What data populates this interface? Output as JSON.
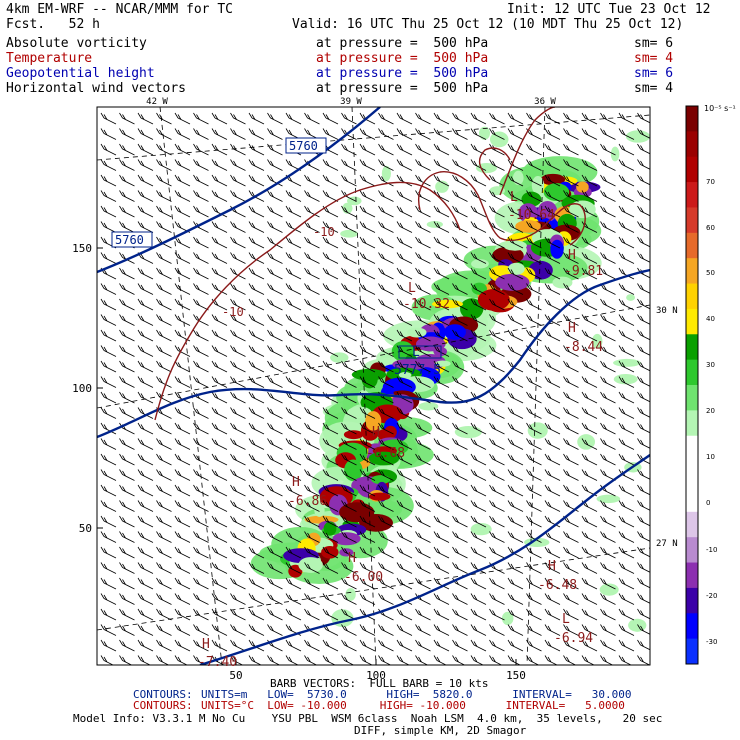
{
  "header": {
    "model": "4km EM-WRF -- NCAR/MMM for TC",
    "init": "Init: 12 UTC Tue 23 Oct 12",
    "fcst": "Fcst.   52 h",
    "valid": "Valid: 16 UTC Thu 25 Oct 12 (10 MDT Thu 25 Oct 12)"
  },
  "fields": [
    {
      "name": "Absolute vorticity",
      "level": "at pressure =  500 hPa",
      "sm": "sm= 6",
      "color": "#000000"
    },
    {
      "name": "Temperature",
      "level": "at pressure =  500 hPa",
      "sm": "sm= 4",
      "color": "#b00000"
    },
    {
      "name": "Geopotential height",
      "level": "at pressure =  500 hPa",
      "sm": "sm= 6",
      "color": "#0000b0"
    },
    {
      "name": "Horizontal wind vectors",
      "level": "at pressure =  500 hPa",
      "sm": "sm= 4",
      "color": "#000000"
    }
  ],
  "map": {
    "lon_labels": [
      "42 W",
      "39 W",
      "36 W"
    ],
    "lat_labels": [
      "30 N",
      "27 N"
    ],
    "grid_y_ticks": [
      "150",
      "100",
      "50"
    ],
    "grid_x_ticks": [
      "50",
      "100",
      "150"
    ],
    "height_contour_labels": [
      "5760",
      "5760"
    ],
    "temp_contour_labels": [
      "-10",
      "-10"
    ],
    "extrema": [
      {
        "type": "L",
        "value": "-10.64",
        "color": "#8b1a1a"
      },
      {
        "type": "H",
        "value": "-9.81",
        "color": "#8b1a1a"
      },
      {
        "type": "L",
        "value": "-10.32",
        "color": "#8b1a1a"
      },
      {
        "type": "H",
        "value": "-8.44",
        "color": "#8b1a1a"
      },
      {
        "type": "L",
        "value": "5777.5",
        "color": "#00008b"
      },
      {
        "type": "H",
        "value": "-6.68",
        "color": "#8b1a1a"
      },
      {
        "type": "H",
        "value": "-6.86",
        "color": "#8b1a1a"
      },
      {
        "type": "H",
        "value": "-6.00",
        "color": "#8b1a1a"
      },
      {
        "type": "H",
        "value": "-6.48",
        "color": "#8b1a1a"
      },
      {
        "type": "L",
        "value": "-6.94",
        "color": "#8b1a1a"
      },
      {
        "type": "H",
        "value": "-7.40",
        "color": "#8b1a1a"
      }
    ]
  },
  "colorbar": {
    "unit": "10⁻⁵ s⁻¹",
    "labels": [
      "70",
      "60",
      "50",
      "40",
      "30",
      "20",
      "10",
      "0",
      "-10",
      "-20",
      "-30"
    ],
    "colors": [
      "#7a0000",
      "#9a0000",
      "#b00000",
      "#cc1a1a",
      "#d63a2a",
      "#e66a2a",
      "#f5a623",
      "#ffd200",
      "#ffea00",
      "#0aa000",
      "#2ec82e",
      "#6fe36f",
      "#b4f5b4",
      "#ffffff",
      "#ffffff",
      "#ffffff",
      "#ddc6e8",
      "#b98bd0",
      "#8c2fb0",
      "#3b00a8",
      "#0000ff",
      "#0a30ff"
    ]
  },
  "footer": {
    "barb": "BARB VECTORS:  FULL BARB = 10 kts",
    "contours1_label": "CONTOURS:",
    "contours1": "UNITS=m   LOW=  5730.0      HIGH=  5820.0      INTERVAL=   30.000",
    "contours2_label": "CONTOURS:",
    "contours2": "UNITS=°C  LOW= -10.000     HIGH= -10.000      INTERVAL=   5.0000",
    "model_info": "Model Info: V3.3.1 M No Cu    YSU PBL  WSM 6class  Noah LSM  4.0 km,  35 levels,   20 sec",
    "model_info2": "DIFF, simple KM, 2D Smagor"
  }
}
